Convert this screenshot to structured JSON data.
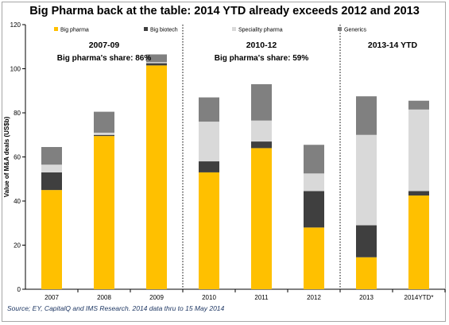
{
  "chart_data": {
    "type": "bar",
    "stacked": true,
    "title": "Big Pharma back at the table: 2014 YTD already exceeds 2012 and 2013",
    "ylabel": "Value of M&A deals (US$b)",
    "xlabel": "",
    "ylim": [
      0,
      120
    ],
    "yticks": [
      "0",
      "20",
      "40",
      "60",
      "80",
      "100",
      "120"
    ],
    "categories": [
      "2007",
      "2008",
      "2009",
      "2010",
      "2011",
      "2012",
      "2013",
      "2014YTD*"
    ],
    "series": [
      {
        "name": "Big pharma",
        "color": "#ffc000",
        "values": [
          45,
          69.5,
          101.5,
          53,
          64,
          28,
          14.5,
          42.5
        ]
      },
      {
        "name": "Big biotech",
        "color": "#3f3f3f",
        "values": [
          8,
          0.5,
          1,
          5,
          3,
          16.5,
          14.5,
          2
        ]
      },
      {
        "name": "Speciality pharma",
        "color": "#d9d9d9",
        "values": [
          3.5,
          1,
          0.5,
          18,
          9.5,
          8,
          41,
          37
        ]
      },
      {
        "name": "Generics",
        "color": "#808080",
        "values": [
          8,
          9.5,
          3.5,
          11,
          16.5,
          13,
          17.5,
          4
        ]
      }
    ],
    "grid": false,
    "legend": "top",
    "annotations": [
      {
        "line1": "2007-09",
        "line2": "Big pharma's share: 86%"
      },
      {
        "line1": "2010-12",
        "line2": "Big pharma's share: 59%"
      },
      {
        "line1": "2013-14 YTD",
        "line2": ""
      }
    ],
    "source": "Source; EY, CapitalQ and IMS Research.  2014 data thru to 15 May 2014"
  }
}
